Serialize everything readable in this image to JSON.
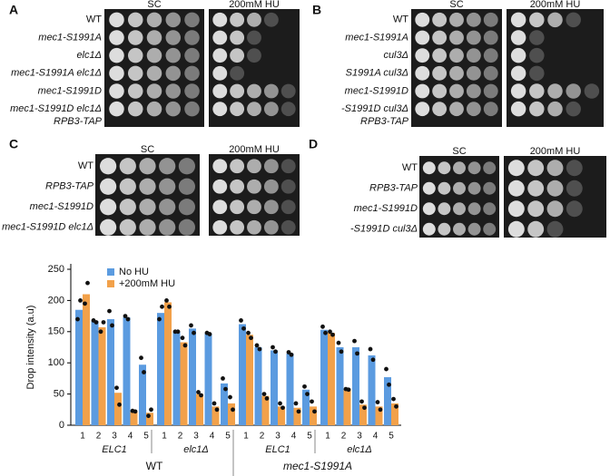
{
  "panels": [
    {
      "letter": "A",
      "columns": [
        "SC",
        "200mM HU"
      ],
      "rows": [
        "WT",
        "mec1-S1991A",
        "elc1Δ",
        "mec1-S1991A elc1Δ",
        "mec1-S1991D",
        "mec1-S1991D elc1Δ"
      ],
      "footnote": "RPB3-TAP"
    },
    {
      "letter": "B",
      "columns": [
        "SC",
        "200mM HU"
      ],
      "rows": [
        "WT",
        "mec1-S1991A",
        "cul3Δ",
        "S1991A cul3Δ",
        "mec1-S1991D",
        "-S1991D cul3Δ"
      ],
      "footnote": "RPB3-TAP"
    },
    {
      "letter": "C",
      "columns": [
        "SC",
        "200mM HU"
      ],
      "rows": [
        "WT",
        "RPB3-TAP",
        "mec1-S1991D",
        "mec1-S1991D elc1Δ"
      ]
    },
    {
      "letter": "D",
      "columns": [
        "SC",
        "200mM HU"
      ],
      "rows": [
        "WT",
        "RPB3-TAP",
        "mec1-S1991D",
        "-S1991D cul3Δ"
      ]
    }
  ],
  "chart_data": {
    "type": "bar",
    "ylabel": "Drop intensity (a.u)",
    "categories": [
      "1",
      "2",
      "3",
      "4",
      "5",
      "1",
      "2",
      "3",
      "4",
      "5",
      "1",
      "2",
      "3",
      "4",
      "5",
      "1",
      "2",
      "3",
      "4",
      "5"
    ],
    "groups": [
      "ELC1",
      "elc1Δ",
      "ELC1",
      "elc1Δ"
    ],
    "strains": [
      "WT",
      "mec1-S1991A"
    ],
    "series": [
      {
        "name": "No HU",
        "color": "#5b9be0",
        "values": [
          185,
          167,
          170,
          173,
          97,
          180,
          150,
          155,
          147,
          67,
          162,
          125,
          120,
          115,
          57,
          153,
          125,
          125,
          112,
          77
        ],
        "points": [
          [
            170,
            200
          ],
          [
            168,
            165
          ],
          [
            183,
            160
          ],
          [
            175,
            170
          ],
          [
            108,
            85
          ],
          [
            170,
            190
          ],
          [
            150,
            150
          ],
          [
            160,
            148
          ],
          [
            148,
            146
          ],
          [
            75,
            58
          ],
          [
            168,
            155
          ],
          [
            128,
            122
          ],
          [
            125,
            118
          ],
          [
            117,
            113
          ],
          [
            62,
            50
          ],
          [
            158,
            148
          ],
          [
            132,
            118
          ],
          [
            135,
            115
          ],
          [
            122,
            105
          ],
          [
            90,
            65
          ]
        ]
      },
      {
        "name": "+200mM HU",
        "color": "#f2a14a",
        "values": [
          210,
          157,
          52,
          22,
          20,
          197,
          133,
          50,
          30,
          35,
          145,
          47,
          30,
          28,
          30,
          148,
          58,
          33,
          30,
          35
        ],
        "points": [
          [
            195,
            228
          ],
          [
            150,
            165
          ],
          [
            60,
            33
          ],
          [
            23,
            22
          ],
          [
            15,
            25
          ],
          [
            200,
            190
          ],
          [
            140,
            128
          ],
          [
            53,
            48
          ],
          [
            35,
            25
          ],
          [
            45,
            25
          ],
          [
            148,
            140
          ],
          [
            50,
            43
          ],
          [
            35,
            28
          ],
          [
            35,
            22
          ],
          [
            38,
            22
          ],
          [
            150,
            145
          ],
          [
            58,
            57
          ],
          [
            38,
            28
          ],
          [
            37,
            25
          ],
          [
            42,
            30
          ]
        ]
      }
    ],
    "ylim": [
      0,
      250
    ],
    "yticks": [
      0,
      50,
      100,
      150,
      200,
      250
    ],
    "legend": "top-left"
  }
}
